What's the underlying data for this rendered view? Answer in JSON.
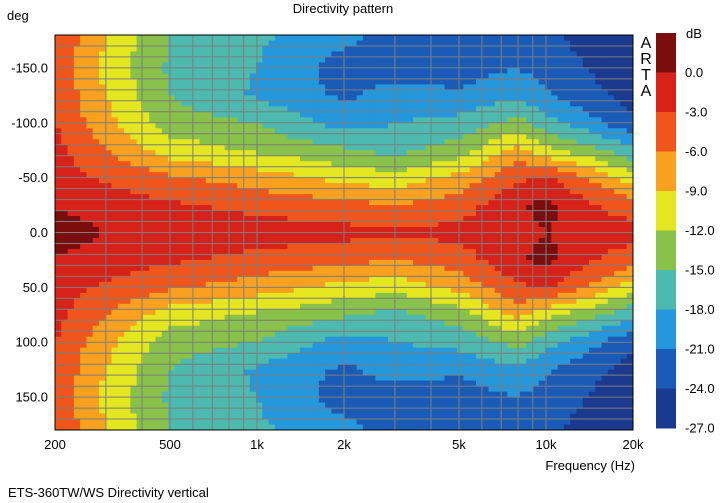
{
  "chart_data": {
    "type": "heatmap",
    "title": "Directivity pattern",
    "caption": "ETS-360TW/WS  Directivity vertical",
    "ylabel": "deg",
    "xlabel": "Frequency (Hz)",
    "watermark": "ARTA",
    "colorbar_title": "dB",
    "x_scale": "log",
    "xlim": [
      200,
      20000
    ],
    "ylim": [
      -180,
      180
    ],
    "y_inverted": true,
    "grid": true,
    "x_tick_labels": [
      {
        "value": 200,
        "label": "200"
      },
      {
        "value": 500,
        "label": "500"
      },
      {
        "value": 1000,
        "label": "1k"
      },
      {
        "value": 2000,
        "label": "2k"
      },
      {
        "value": 5000,
        "label": "5k"
      },
      {
        "value": 10000,
        "label": "10k"
      },
      {
        "value": 20000,
        "label": "20k"
      }
    ],
    "y_tick_labels": [
      {
        "value": -150,
        "label": "-150.0"
      },
      {
        "value": -100,
        "label": "-100.0"
      },
      {
        "value": -50,
        "label": "-50.0"
      },
      {
        "value": 0,
        "label": "0.0"
      },
      {
        "value": 50,
        "label": "50.0"
      },
      {
        "value": 100,
        "label": "100.0"
      },
      {
        "value": 150,
        "label": "150.0"
      }
    ],
    "colorbar_levels": [
      {
        "level": 0.0,
        "label": "0.0",
        "color": "#7b0d0d"
      },
      {
        "level": -3.0,
        "label": "-3.0",
        "color": "#d7221a"
      },
      {
        "level": -6.0,
        "label": "-6.0",
        "color": "#f0561c"
      },
      {
        "level": -9.0,
        "label": "-9.0",
        "color": "#f9a01f"
      },
      {
        "level": -12.0,
        "label": "-12.0",
        "color": "#e4e61f"
      },
      {
        "level": -15.0,
        "label": "-15.0",
        "color": "#89c24a"
      },
      {
        "level": -18.0,
        "label": "-18.0",
        "color": "#4dbab0"
      },
      {
        "level": -21.0,
        "label": "-21.0",
        "color": "#2597dc"
      },
      {
        "level": -24.0,
        "label": "-24.0",
        "color": "#1a5bb8"
      },
      {
        "level": -27.0,
        "label": "-27.0",
        "color": "#1b3a8f"
      }
    ],
    "directivity_db_grid": {
      "freq_hz": [
        200,
        300,
        500,
        1000,
        2000,
        3000,
        5000,
        8000,
        10000,
        15000,
        20000
      ],
      "angle_deg": [
        0,
        25,
        50,
        75,
        100,
        125,
        150,
        180
      ],
      "db": [
        [
          0.5,
          -1.5,
          -2.0,
          -3.0,
          -3.5,
          -4.0,
          -3.5,
          -2.5,
          -1.5,
          -3.0,
          -3.5
        ],
        [
          -2.0,
          -3.0,
          -4.0,
          -5.5,
          -6.5,
          -7.5,
          -6.0,
          -2.0,
          -0.5,
          -4.5,
          -6.0
        ],
        [
          -3.0,
          -5.0,
          -7.0,
          -9.0,
          -11.5,
          -12.5,
          -9.5,
          -5.0,
          -4.0,
          -8.5,
          -12.0
        ],
        [
          -3.5,
          -7.5,
          -12.0,
          -14.0,
          -16.0,
          -17.5,
          -15.0,
          -9.5,
          -12.5,
          -16.0,
          -19.0
        ],
        [
          -4.5,
          -9.5,
          -15.0,
          -16.5,
          -21.0,
          -19.5,
          -18.5,
          -15.5,
          -18.5,
          -22.0,
          -25.0
        ],
        [
          -5.0,
          -10.5,
          -16.5,
          -20.0,
          -23.0,
          -21.5,
          -22.0,
          -20.0,
          -22.0,
          -25.0,
          -26.5
        ],
        [
          -5.5,
          -11.5,
          -17.0,
          -19.5,
          -24.0,
          -23.5,
          -24.0,
          -22.5,
          -24.0,
          -26.0,
          -27.0
        ],
        [
          -4.5,
          -10.5,
          -16.5,
          -19.0,
          -21.5,
          -24.0,
          -25.0,
          -23.5,
          -25.0,
          -26.5,
          -27.0
        ]
      ]
    }
  }
}
